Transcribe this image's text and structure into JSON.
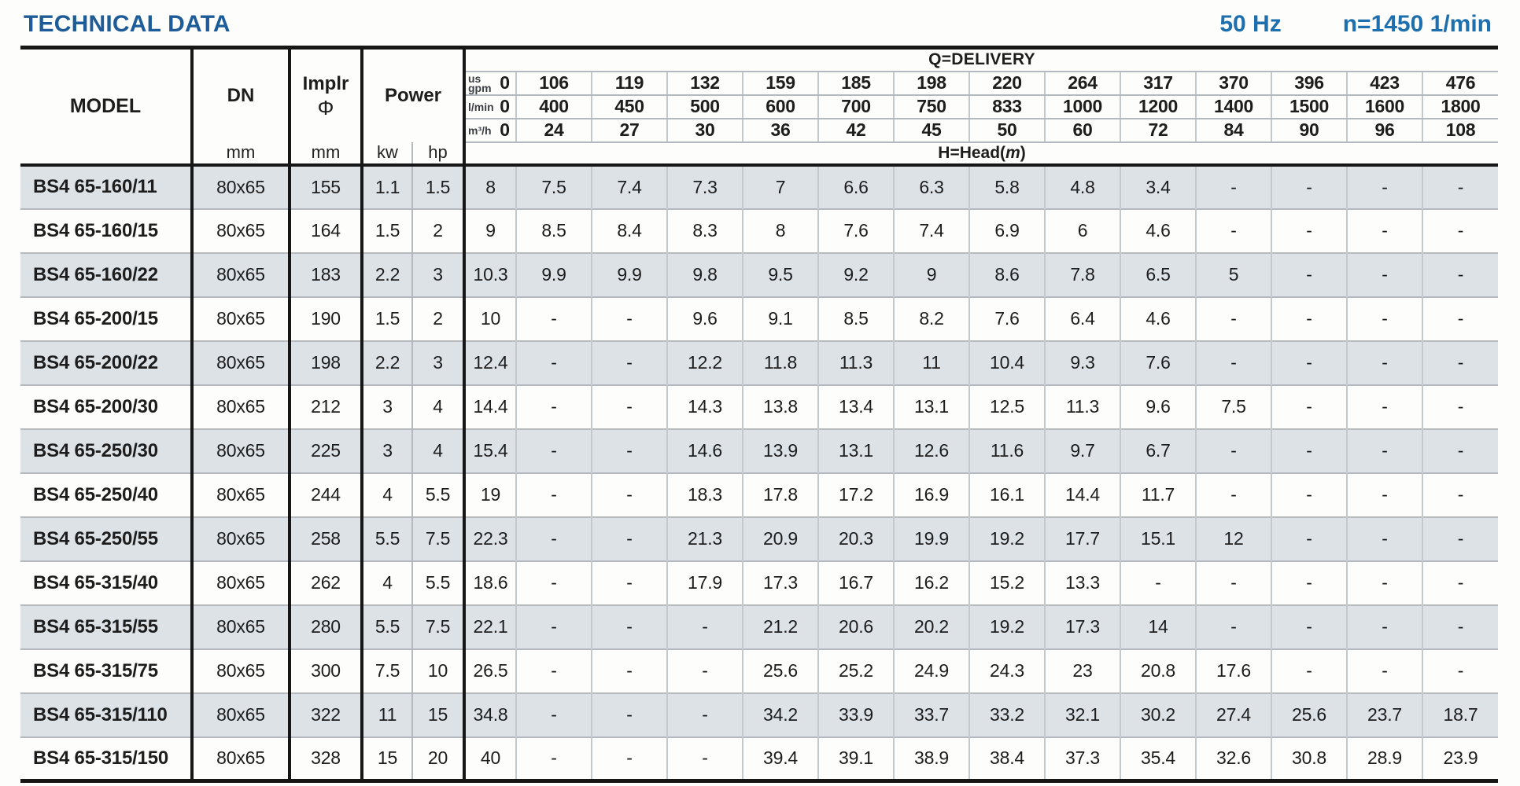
{
  "page": {
    "title": "TECHNICAL DATA",
    "frequency": "50 Hz",
    "speed": "n=1450 1/min"
  },
  "colors": {
    "title_blue": "#1d5c99",
    "info_blue": "#1e6fae",
    "row_shade": "#dde2e7"
  },
  "table": {
    "headers": {
      "model": "MODEL",
      "dn": "DN",
      "dn_unit": "mm",
      "implr_line1": "Implr",
      "implr_line2": "Φ",
      "implr_unit": "mm",
      "power": "Power",
      "power_kw": "kw",
      "power_hp": "hp",
      "delivery": "Q=DELIVERY",
      "head_prefix": "H=Head(",
      "head_m": "m",
      "head_close": ")"
    },
    "flow_units": [
      {
        "label": "us\ngpm",
        "zero": "0",
        "values": [
          "106",
          "119",
          "132",
          "159",
          "185",
          "198",
          "220",
          "264",
          "317",
          "370",
          "396",
          "423",
          "476"
        ]
      },
      {
        "label": "l/min",
        "zero": "0",
        "values": [
          "400",
          "450",
          "500",
          "600",
          "700",
          "750",
          "833",
          "1000",
          "1200",
          "1400",
          "1500",
          "1600",
          "1800"
        ]
      },
      {
        "label": "m³/h",
        "zero": "0",
        "values": [
          "24",
          "27",
          "30",
          "36",
          "42",
          "45",
          "50",
          "60",
          "72",
          "84",
          "90",
          "96",
          "108"
        ]
      }
    ],
    "rows": [
      {
        "model": "BS4 65-160/11",
        "dn": "80x65",
        "implr": "155",
        "kw": "1.1",
        "hp": "1.5",
        "head": [
          "8",
          "7.5",
          "7.4",
          "7.3",
          "7",
          "6.6",
          "6.3",
          "5.8",
          "4.8",
          "3.4",
          "-",
          "-",
          "-",
          "-"
        ]
      },
      {
        "model": "BS4 65-160/15",
        "dn": "80x65",
        "implr": "164",
        "kw": "1.5",
        "hp": "2",
        "head": [
          "9",
          "8.5",
          "8.4",
          "8.3",
          "8",
          "7.6",
          "7.4",
          "6.9",
          "6",
          "4.6",
          "-",
          "-",
          "-",
          "-"
        ]
      },
      {
        "model": "BS4 65-160/22",
        "dn": "80x65",
        "implr": "183",
        "kw": "2.2",
        "hp": "3",
        "head": [
          "10.3",
          "9.9",
          "9.9",
          "9.8",
          "9.5",
          "9.2",
          "9",
          "8.6",
          "7.8",
          "6.5",
          "5",
          "-",
          "-",
          "-"
        ]
      },
      {
        "model": "BS4 65-200/15",
        "dn": "80x65",
        "implr": "190",
        "kw": "1.5",
        "hp": "2",
        "head": [
          "10",
          "-",
          "-",
          "9.6",
          "9.1",
          "8.5",
          "8.2",
          "7.6",
          "6.4",
          "4.6",
          "-",
          "-",
          "-",
          "-"
        ]
      },
      {
        "model": "BS4 65-200/22",
        "dn": "80x65",
        "implr": "198",
        "kw": "2.2",
        "hp": "3",
        "head": [
          "12.4",
          "-",
          "-",
          "12.2",
          "11.8",
          "11.3",
          "11",
          "10.4",
          "9.3",
          "7.6",
          "-",
          "-",
          "-",
          "-"
        ]
      },
      {
        "model": "BS4 65-200/30",
        "dn": "80x65",
        "implr": "212",
        "kw": "3",
        "hp": "4",
        "head": [
          "14.4",
          "-",
          "-",
          "14.3",
          "13.8",
          "13.4",
          "13.1",
          "12.5",
          "11.3",
          "9.6",
          "7.5",
          "-",
          "-",
          "-"
        ]
      },
      {
        "model": "BS4 65-250/30",
        "dn": "80x65",
        "implr": "225",
        "kw": "3",
        "hp": "4",
        "head": [
          "15.4",
          "-",
          "-",
          "14.6",
          "13.9",
          "13.1",
          "12.6",
          "11.6",
          "9.7",
          "6.7",
          "-",
          "-",
          "-",
          "-"
        ]
      },
      {
        "model": "BS4 65-250/40",
        "dn": "80x65",
        "implr": "244",
        "kw": "4",
        "hp": "5.5",
        "head": [
          "19",
          "-",
          "-",
          "18.3",
          "17.8",
          "17.2",
          "16.9",
          "16.1",
          "14.4",
          "11.7",
          "-",
          "-",
          "-",
          "-"
        ]
      },
      {
        "model": "BS4 65-250/55",
        "dn": "80x65",
        "implr": "258",
        "kw": "5.5",
        "hp": "7.5",
        "head": [
          "22.3",
          "-",
          "-",
          "21.3",
          "20.9",
          "20.3",
          "19.9",
          "19.2",
          "17.7",
          "15.1",
          "12",
          "-",
          "-",
          "-"
        ]
      },
      {
        "model": "BS4 65-315/40",
        "dn": "80x65",
        "implr": "262",
        "kw": "4",
        "hp": "5.5",
        "head": [
          "18.6",
          "-",
          "-",
          "17.9",
          "17.3",
          "16.7",
          "16.2",
          "15.2",
          "13.3",
          "-",
          "-",
          "-",
          "-",
          "-"
        ]
      },
      {
        "model": "BS4 65-315/55",
        "dn": "80x65",
        "implr": "280",
        "kw": "5.5",
        "hp": "7.5",
        "head": [
          "22.1",
          "-",
          "-",
          "-",
          "21.2",
          "20.6",
          "20.2",
          "19.2",
          "17.3",
          "14",
          "-",
          "-",
          "-",
          "-"
        ]
      },
      {
        "model": "BS4 65-315/75",
        "dn": "80x65",
        "implr": "300",
        "kw": "7.5",
        "hp": "10",
        "head": [
          "26.5",
          "-",
          "-",
          "-",
          "25.6",
          "25.2",
          "24.9",
          "24.3",
          "23",
          "20.8",
          "17.6",
          "-",
          "-",
          "-"
        ]
      },
      {
        "model": "BS4 65-315/110",
        "dn": "80x65",
        "implr": "322",
        "kw": "11",
        "hp": "15",
        "head": [
          "34.8",
          "-",
          "-",
          "-",
          "34.2",
          "33.9",
          "33.7",
          "33.2",
          "32.1",
          "30.2",
          "27.4",
          "25.6",
          "23.7",
          "18.7"
        ]
      },
      {
        "model": "BS4 65-315/150",
        "dn": "80x65",
        "implr": "328",
        "kw": "15",
        "hp": "20",
        "head": [
          "40",
          "-",
          "-",
          "-",
          "39.4",
          "39.1",
          "38.9",
          "38.4",
          "37.3",
          "35.4",
          "32.6",
          "30.8",
          "28.9",
          "23.9"
        ]
      }
    ]
  }
}
